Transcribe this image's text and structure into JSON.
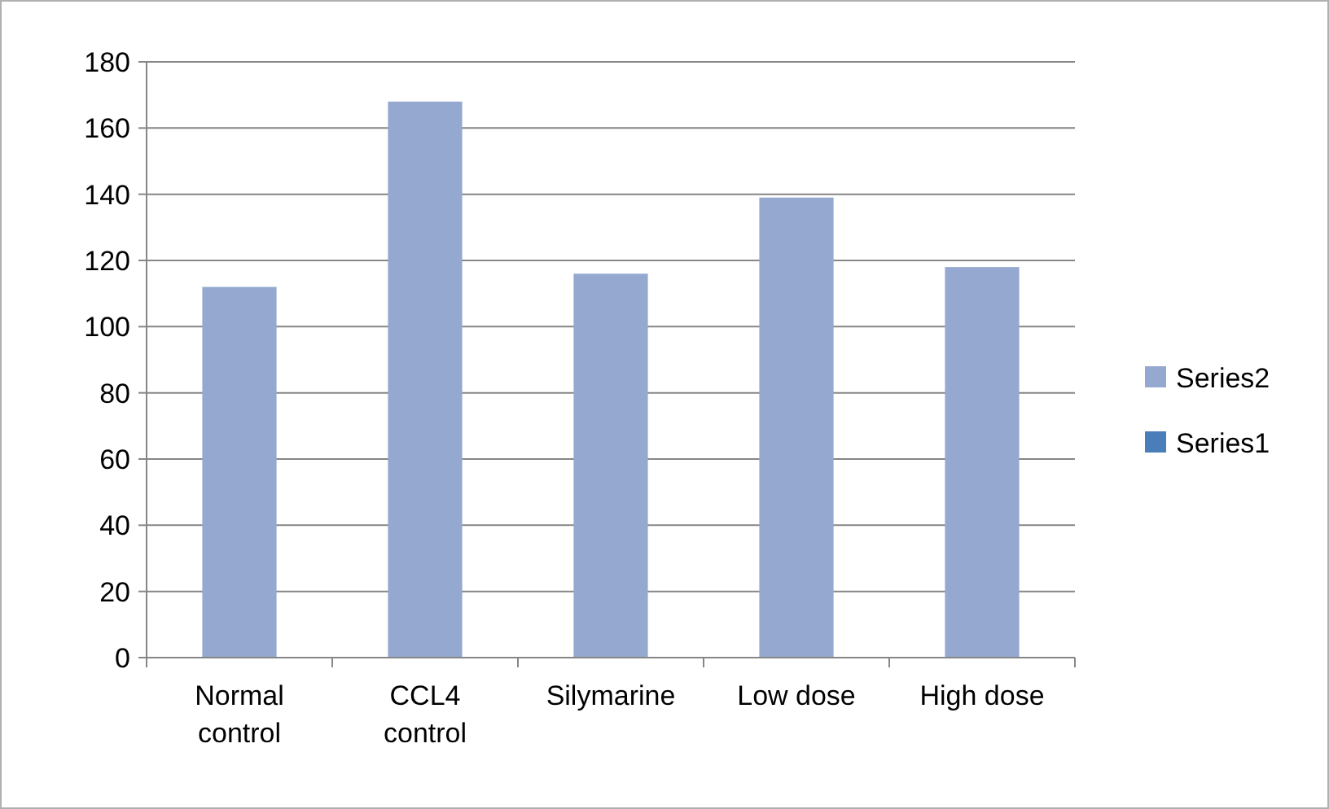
{
  "chart_data": {
    "type": "bar",
    "categories": [
      "Normal control",
      "CCL4 control",
      "Silymarine",
      "Low dose",
      "High dose"
    ],
    "series": [
      {
        "name": "Series2",
        "color": "#95a9d0",
        "values": [
          112,
          168,
          116,
          139,
          118
        ]
      },
      {
        "name": "Series1",
        "color": "#4a7ebb",
        "values": [
          null,
          null,
          null,
          null,
          null
        ]
      }
    ],
    "ylim": [
      0,
      180
    ],
    "yticks": [
      0,
      20,
      40,
      60,
      80,
      100,
      120,
      140,
      160,
      180
    ],
    "grid": "y",
    "legend": "right"
  }
}
